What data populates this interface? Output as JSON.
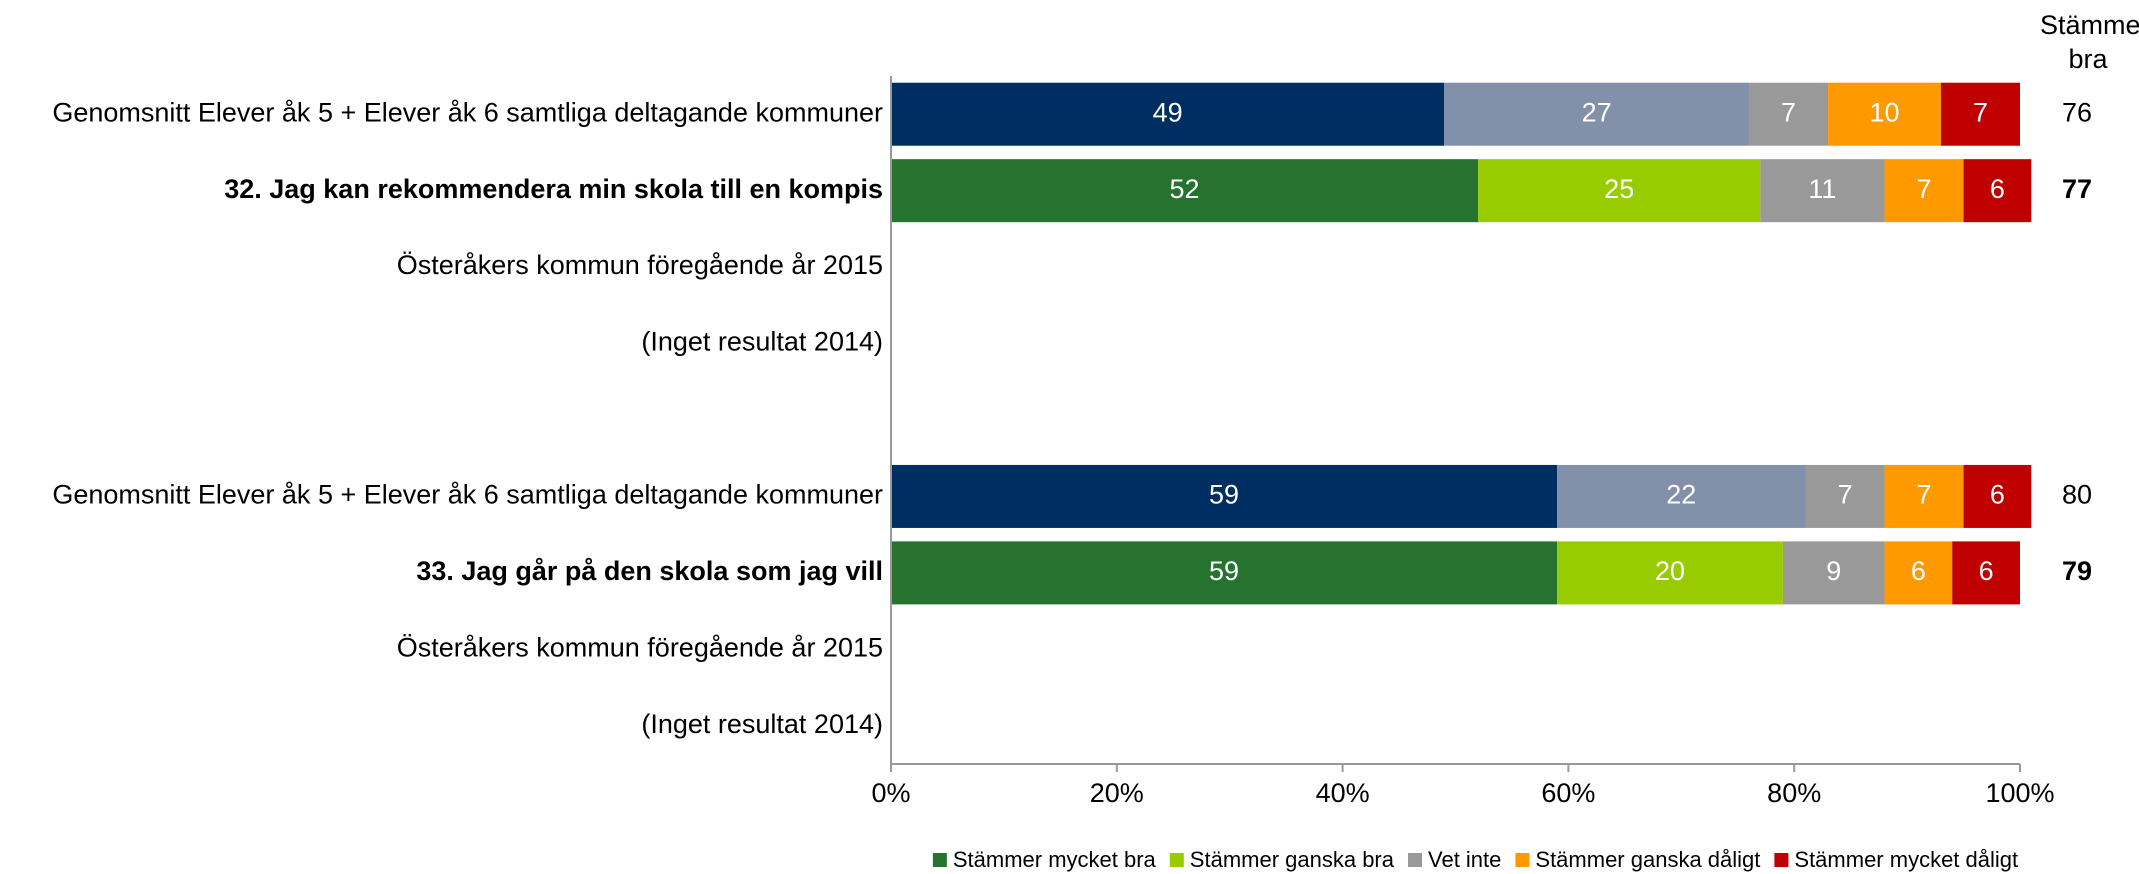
{
  "chart_data": {
    "type": "stacked-barh",
    "categories": [
      "Genomsnitt Elever åk 5 + Elever åk 6 samtliga deltagande kommuner",
      "32. Jag kan rekommendera min skola till en kompis",
      "Österåkers kommun föregående år 2015",
      "(Inget resultat 2014)",
      null,
      "Genomsnitt Elever åk 5 + Elever åk 6 samtliga deltagande kommuner",
      "33. Jag går på den skola som jag vill",
      "Österåkers kommun föregående år 2015",
      "(Inget resultat 2014)"
    ],
    "bold": [
      false,
      true,
      false,
      false,
      false,
      false,
      true,
      false,
      false
    ],
    "series": [
      {
        "name": "Stämmer mycket bra",
        "color": "#267330",
        "colors": [
          "#002d62",
          "#267330",
          null,
          null,
          null,
          "#002d62",
          "#267330",
          null,
          null
        ],
        "values": [
          49,
          52,
          null,
          null,
          null,
          59,
          59,
          null,
          null
        ]
      },
      {
        "name": "Stämmer ganska bra",
        "color": "#99cc00",
        "colors": [
          "#8390aa",
          "#99cc00",
          null,
          null,
          null,
          "#8390aa",
          "#99cc00",
          null,
          null
        ],
        "values": [
          27,
          25,
          null,
          null,
          null,
          22,
          20,
          null,
          null
        ]
      },
      {
        "name": "Vet inte",
        "color": "#999999",
        "colors": [
          "#999999",
          "#999999",
          null,
          null,
          null,
          "#999999",
          "#999999",
          null,
          null
        ],
        "values": [
          7,
          11,
          null,
          null,
          null,
          7,
          9,
          null,
          null
        ]
      },
      {
        "name": "Stämmer ganska dåligt",
        "color": "#ff9900",
        "colors": [
          "#ff9900",
          "#ff9900",
          null,
          null,
          null,
          "#ff9900",
          "#ff9900",
          null,
          null
        ],
        "values": [
          10,
          7,
          null,
          null,
          null,
          7,
          6,
          null,
          null
        ]
      },
      {
        "name": "Stämmer mycket dåligt",
        "color": "#c00000",
        "colors": [
          "#c00000",
          "#c00000",
          null,
          null,
          null,
          "#c00000",
          "#c00000",
          null,
          null
        ],
        "values": [
          7,
          6,
          null,
          null,
          null,
          6,
          6,
          null,
          null
        ]
      }
    ],
    "right_title": "Stämmer bra",
    "right_values": [
      76,
      77,
      null,
      null,
      null,
      80,
      79,
      null,
      null
    ],
    "xlim": [
      0,
      100
    ],
    "xticks": [
      {
        "value": 0,
        "label": "0%"
      },
      {
        "value": 20,
        "label": "20%"
      },
      {
        "value": 40,
        "label": "40%"
      },
      {
        "value": 60,
        "label": "60%"
      },
      {
        "value": 80,
        "label": "80%"
      },
      {
        "value": 100,
        "label": "100%"
      }
    ],
    "legend": "bottom"
  }
}
